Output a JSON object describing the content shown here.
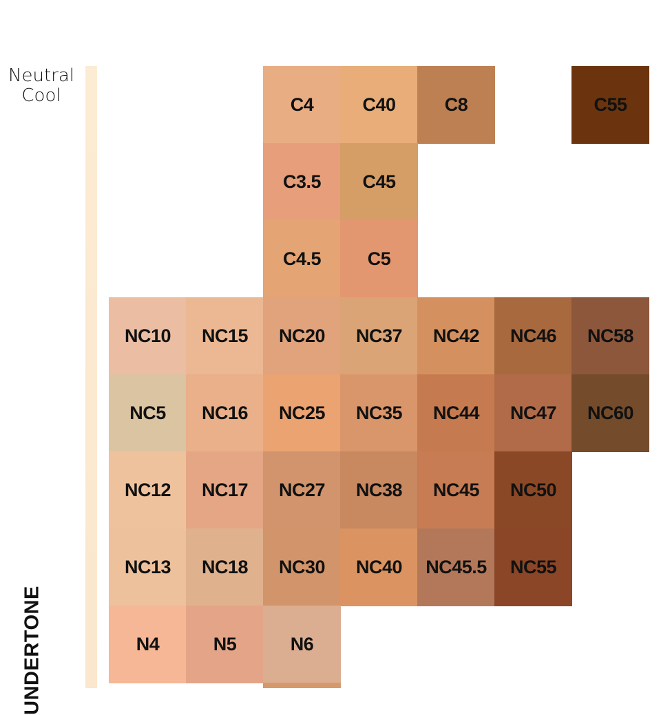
{
  "row_labels": {
    "neutral_cool_line1": "Neutral",
    "neutral_cool_line2": "Cool"
  },
  "axis_title": "UNDERTONE",
  "swatches": [
    {
      "code": "C4",
      "color": "#e9ad84"
    },
    {
      "code": "C40",
      "color": "#e8ad79"
    },
    {
      "code": "C8",
      "color": "#bd8052"
    },
    {
      "code": "C55",
      "color": "#6b340e"
    },
    {
      "code": "C3.5",
      "color": "#e79e7b"
    },
    {
      "code": "C45",
      "color": "#d59e66"
    },
    {
      "code": "C4.5",
      "color": "#e4a473"
    },
    {
      "code": "C5",
      "color": "#e39770"
    },
    {
      "code": "NC10",
      "color": "#ebbea3"
    },
    {
      "code": "NC15",
      "color": "#ebb893"
    },
    {
      "code": "NC20",
      "color": "#e0a37c"
    },
    {
      "code": "NC37",
      "color": "#dba476"
    },
    {
      "code": "NC42",
      "color": "#d4915f"
    },
    {
      "code": "NC46",
      "color": "#a8693f"
    },
    {
      "code": "NC58",
      "color": "#8d573c"
    },
    {
      "code": "NC5",
      "color": "#dbc4a2"
    },
    {
      "code": "NC16",
      "color": "#e9b08a"
    },
    {
      "code": "NC25",
      "color": "#eba372"
    },
    {
      "code": "NC35",
      "color": "#d9966b"
    },
    {
      "code": "NC44",
      "color": "#c57b4f"
    },
    {
      "code": "NC47",
      "color": "#b16b48"
    },
    {
      "code": "NC60",
      "color": "#744c2c"
    },
    {
      "code": "NC12",
      "color": "#efc29e"
    },
    {
      "code": "NC17",
      "color": "#e4a685"
    },
    {
      "code": "NC27",
      "color": "#d1946c"
    },
    {
      "code": "NC38",
      "color": "#c88860"
    },
    {
      "code": "NC45",
      "color": "#c77c53"
    },
    {
      "code": "NC50",
      "color": "#8b4826"
    },
    {
      "code": "NC13",
      "color": "#ecc19c"
    },
    {
      "code": "NC18",
      "color": "#dfb18d"
    },
    {
      "code": "NC30",
      "color": "#d2946a"
    },
    {
      "code": "NC40",
      "color": "#db9461"
    },
    {
      "code": "NC45.5",
      "color": "#b37859"
    },
    {
      "code": "NC55",
      "color": "#8a4627"
    },
    {
      "code": "N4",
      "color": "#f5b795"
    },
    {
      "code": "N5",
      "color": "#e4a488"
    },
    {
      "code": "N6",
      "color": "#dbad91"
    }
  ]
}
